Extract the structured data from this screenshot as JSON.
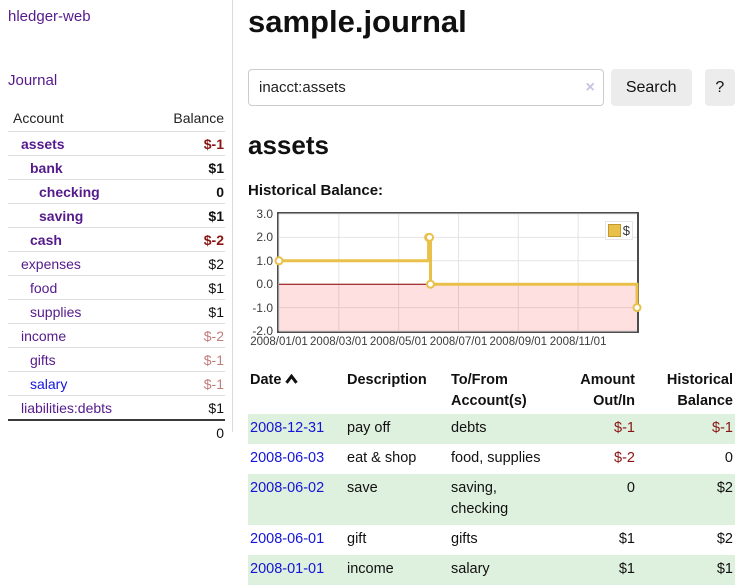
{
  "app": {
    "title": "hledger-web",
    "nav_journal": "Journal"
  },
  "page": {
    "title": "sample.journal"
  },
  "search": {
    "value": "inacct:assets",
    "clear_icon": "×",
    "search_button": "Search",
    "help_button": "?"
  },
  "sidebar": {
    "columns": {
      "account": "Account",
      "balance": "Balance"
    },
    "accounts": [
      {
        "name": "assets",
        "balance": "$-1",
        "level": 1,
        "bold": true,
        "neg": "strong",
        "link": "purple"
      },
      {
        "name": "bank",
        "balance": "$1",
        "level": 2,
        "bold": true,
        "neg": "none",
        "link": "purple"
      },
      {
        "name": "checking",
        "balance": "0",
        "level": 3,
        "bold": true,
        "neg": "none",
        "link": "purple"
      },
      {
        "name": "saving",
        "balance": "$1",
        "level": 3,
        "bold": true,
        "neg": "none",
        "link": "purple"
      },
      {
        "name": "cash",
        "balance": "$-2",
        "level": 2,
        "bold": true,
        "neg": "strong",
        "link": "purple"
      },
      {
        "name": "expenses",
        "balance": "$2",
        "level": 1,
        "bold": false,
        "neg": "none",
        "link": "purple"
      },
      {
        "name": "food",
        "balance": "$1",
        "level": 2,
        "bold": false,
        "neg": "none",
        "link": "purple"
      },
      {
        "name": "supplies",
        "balance": "$1",
        "level": 2,
        "bold": false,
        "neg": "none",
        "link": "purple"
      },
      {
        "name": "income",
        "balance": "$-2",
        "level": 1,
        "bold": false,
        "neg": "soft",
        "link": "purple"
      },
      {
        "name": "gifts",
        "balance": "$-1",
        "level": 2,
        "bold": false,
        "neg": "soft",
        "link": "purple"
      },
      {
        "name": "salary",
        "balance": "$-1",
        "level": 2,
        "bold": false,
        "neg": "soft",
        "link": "blue"
      },
      {
        "name": "liabilities:debts",
        "balance": "$1",
        "level": 1,
        "bold": false,
        "neg": "none",
        "link": "purple"
      }
    ],
    "total": "0"
  },
  "account_page": {
    "heading": "assets",
    "section_label": "Historical Balance:"
  },
  "chart_data": {
    "type": "line",
    "step": true,
    "title": "Historical Balance",
    "x_ticks": [
      "2008/01/01",
      "2008/03/01",
      "2008/05/01",
      "2008/07/01",
      "2008/09/01",
      "2008/11/01"
    ],
    "y_ticks": [
      "3.0",
      "2.0",
      "1.0",
      "0.0",
      "-1.0",
      "-2.0"
    ],
    "ylim": [
      -2,
      3
    ],
    "xlim": [
      "2008/01/01",
      "2008/12/31"
    ],
    "grid": true,
    "legend": {
      "label": "$",
      "position": "top-right"
    },
    "series": [
      {
        "name": "$",
        "color": "#e8c04a",
        "marker": "open-circle",
        "points": [
          [
            "2008/01/01",
            1
          ],
          [
            "2008/06/01",
            2
          ],
          [
            "2008/06/02",
            2
          ],
          [
            "2008/06/03",
            0
          ],
          [
            "2008/12/31",
            -1
          ]
        ]
      }
    ],
    "negative_region": {
      "fill": "rgba(255,0,0,0.12)",
      "zero_line_color": "#8b0000"
    },
    "gridline_color": "#e4e4e4"
  },
  "register": {
    "columns": [
      {
        "label": "Date",
        "sort": "asc",
        "align": "left"
      },
      {
        "label": "Description",
        "align": "left"
      },
      {
        "label": "To/From Account(s)",
        "align": "left"
      },
      {
        "label": "Amount Out/In",
        "align": "right"
      },
      {
        "label": "Historical Balance",
        "align": "right"
      }
    ],
    "rows": [
      {
        "date": "2008-12-31",
        "description": "pay off",
        "accounts": "debts",
        "amount": "$-1",
        "amount_neg": true,
        "balance": "$-1",
        "balance_neg": true
      },
      {
        "date": "2008-06-03",
        "description": "eat & shop",
        "accounts": "food, supplies",
        "amount": "$-2",
        "amount_neg": true,
        "balance": "0",
        "balance_neg": false
      },
      {
        "date": "2008-06-02",
        "description": "save",
        "accounts": "saving, checking",
        "amount": "0",
        "amount_neg": false,
        "balance": "$2",
        "balance_neg": false
      },
      {
        "date": "2008-06-01",
        "description": "gift",
        "accounts": "gifts",
        "amount": "$1",
        "amount_neg": false,
        "balance": "$2",
        "balance_neg": false
      },
      {
        "date": "2008-01-01",
        "description": "income",
        "accounts": "salary",
        "amount": "$1",
        "amount_neg": false,
        "balance": "$1",
        "balance_neg": false
      }
    ]
  },
  "colors": {
    "link_purple": "#551a8b",
    "link_blue": "#1414e0",
    "date_link_blue": "#1414d8",
    "negative_strong": "#8b1414",
    "negative_soft": "#c27d7d",
    "row_stripe_green": "#def0de",
    "chart_line": "#e8c04a",
    "zero_line": "#8b0000"
  }
}
